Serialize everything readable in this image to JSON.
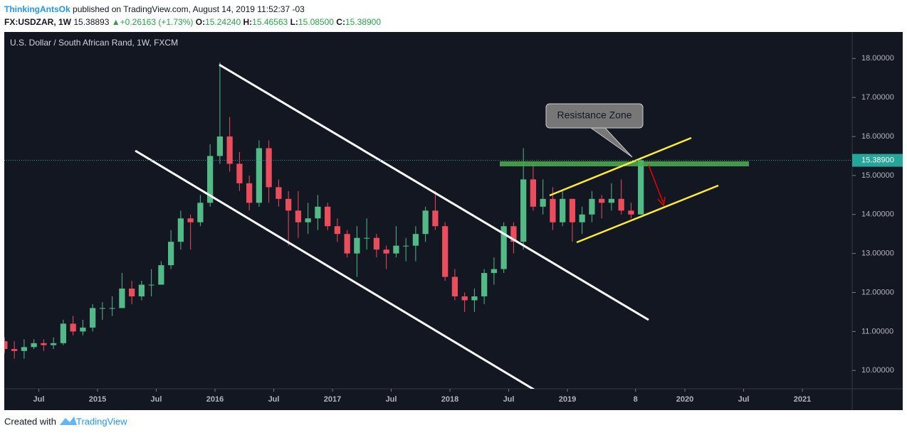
{
  "header": {
    "author": "ThinkingAntsOk",
    "published": "published on TradingView.com, August 14, 2019 11:52:37 -03",
    "symbol": "FX:USDZAR, 1W",
    "price": "15.38893",
    "change": "+0.26163 (+1.73%)",
    "o_label": "O:",
    "o": "15.24240",
    "h_label": "H:",
    "h": "15.46563",
    "l_label": "L:",
    "l": "15.08500",
    "c_label": "C:",
    "c": "15.38900"
  },
  "footer": {
    "created": "Created with",
    "brand": "TradingView"
  },
  "chart_data": {
    "type": "candlestick",
    "title": "U.S. Dollar / South African Rand, 1W, FXCM",
    "annotation": "Resistance Zone",
    "up_color": "#53b987",
    "down_color": "#eb4d5c",
    "x": [
      "2014-03",
      "2014-04",
      "2014-05",
      "2014-06",
      "2014-07",
      "2014-08",
      "2014-09",
      "2014-10",
      "2014-11",
      "2014-12",
      "2015-01",
      "2015-02",
      "2015-03",
      "2015-04",
      "2015-05",
      "2015-06",
      "2015-07",
      "2015-08",
      "2015-09",
      "2015-10",
      "2015-11",
      "2015-12",
      "2016-01",
      "2016-02",
      "2016-03",
      "2016-04",
      "2016-05",
      "2016-06",
      "2016-07",
      "2016-08",
      "2016-09",
      "2016-10",
      "2016-11",
      "2016-12",
      "2017-01",
      "2017-02",
      "2017-03",
      "2017-04",
      "2017-05",
      "2017-06",
      "2017-07",
      "2017-08",
      "2017-09",
      "2017-10",
      "2017-11",
      "2017-12",
      "2018-01",
      "2018-02",
      "2018-03",
      "2018-04",
      "2018-05",
      "2018-06",
      "2018-07",
      "2018-08",
      "2018-09",
      "2018-10",
      "2018-11",
      "2018-12",
      "2019-01",
      "2019-02",
      "2019-03",
      "2019-04",
      "2019-05",
      "2019-06",
      "2019-07",
      "2019-08"
    ],
    "open": [
      10.75,
      10.55,
      10.5,
      10.6,
      10.7,
      10.65,
      10.7,
      11.2,
      11.0,
      11.1,
      11.6,
      11.6,
      11.6,
      12.1,
      11.9,
      12.2,
      12.2,
      12.7,
      13.3,
      13.9,
      13.8,
      14.3,
      15.5,
      16.0,
      15.3,
      14.8,
      14.3,
      15.7,
      14.7,
      14.4,
      14.1,
      13.8,
      13.9,
      14.2,
      13.7,
      13.5,
      13.0,
      13.4,
      13.4,
      13.1,
      13.0,
      13.2,
      13.2,
      13.5,
      14.1,
      13.7,
      12.4,
      11.9,
      11.8,
      11.9,
      12.5,
      12.6,
      13.7,
      13.3,
      14.9,
      14.2,
      14.4,
      13.8,
      14.4,
      13.8,
      14.0,
      14.4,
      14.3,
      14.4,
      14.1,
      14.0
    ],
    "high": [
      10.85,
      10.75,
      10.8,
      10.8,
      10.8,
      10.85,
      11.3,
      11.4,
      11.3,
      11.7,
      11.75,
      11.9,
      12.5,
      12.3,
      12.3,
      12.6,
      12.8,
      13.6,
      14.1,
      14.0,
      14.5,
      15.8,
      17.9,
      16.5,
      15.6,
      15.0,
      15.9,
      15.9,
      14.9,
      14.6,
      14.6,
      14.3,
      14.5,
      14.3,
      13.9,
      13.6,
      13.7,
      13.9,
      13.5,
      13.2,
      13.7,
      13.4,
      13.7,
      14.2,
      14.6,
      13.8,
      12.6,
      12.0,
      12.1,
      12.6,
      12.9,
      13.8,
      13.8,
      15.7,
      15.3,
      14.9,
      14.7,
      14.6,
      14.4,
      14.2,
      14.6,
      14.5,
      14.8,
      14.9,
      14.3,
      15.47
    ],
    "low": [
      10.45,
      10.3,
      10.3,
      10.55,
      10.5,
      10.55,
      10.65,
      10.9,
      10.9,
      11.0,
      11.3,
      11.4,
      11.6,
      11.7,
      11.8,
      11.9,
      12.2,
      12.6,
      13.1,
      13.1,
      13.7,
      14.2,
      15.3,
      15.1,
      14.6,
      14.1,
      14.2,
      14.3,
      14.2,
      13.2,
      13.4,
      13.5,
      13.6,
      13.6,
      13.3,
      12.9,
      12.4,
      13.1,
      12.9,
      12.6,
      12.9,
      12.8,
      12.8,
      13.3,
      13.6,
      12.3,
      11.8,
      11.5,
      11.5,
      11.7,
      12.2,
      12.5,
      13.0,
      13.1,
      14.1,
      14.0,
      13.6,
      13.7,
      13.3,
      13.5,
      13.8,
      13.9,
      14.1,
      14.0,
      13.9,
      14.0
    ],
    "close": [
      10.55,
      10.5,
      10.6,
      10.7,
      10.65,
      10.7,
      11.2,
      11.0,
      11.1,
      11.6,
      11.6,
      11.6,
      12.1,
      11.9,
      12.2,
      12.2,
      12.7,
      13.3,
      13.9,
      13.8,
      14.3,
      15.5,
      16.0,
      15.3,
      14.8,
      14.3,
      15.7,
      14.7,
      14.4,
      14.1,
      13.8,
      13.9,
      14.2,
      13.7,
      13.5,
      13.0,
      13.4,
      13.4,
      13.1,
      13.0,
      13.2,
      13.2,
      13.5,
      14.1,
      13.7,
      12.4,
      11.9,
      11.8,
      11.9,
      12.5,
      12.6,
      13.7,
      13.3,
      14.9,
      14.2,
      14.4,
      13.8,
      14.4,
      13.8,
      14.0,
      14.4,
      14.3,
      14.4,
      14.1,
      14.0,
      15.39
    ],
    "xlim": [
      2014.206,
      2021.424
    ],
    "xticks": [
      {
        "value": 2014.5,
        "label": "Jul"
      },
      2015,
      {
        "value": 2015.5,
        "label": "Jul"
      },
      2016,
      {
        "value": 2016.5,
        "label": "Jul"
      },
      2017,
      {
        "value": 2017.5,
        "label": "Jul"
      },
      2018,
      {
        "value": 2018.5,
        "label": "Jul"
      },
      2019,
      {
        "value": 2019.58,
        "label": "8"
      },
      2020,
      {
        "value": 2020.5,
        "label": "Jul"
      },
      2021
    ],
    "ylim": [
      9.53,
      18.68
    ],
    "yticks": [
      {
        "value": 10,
        "label": "10.00000"
      },
      {
        "value": 11,
        "label": "11.00000"
      },
      {
        "value": 12,
        "label": "12.00000"
      },
      {
        "value": 13,
        "label": "13.00000"
      },
      {
        "value": 14,
        "label": "14.00000"
      },
      {
        "value": 15,
        "label": "15.00000"
      },
      {
        "value": 16,
        "label": "16.00000"
      },
      {
        "value": 17,
        "label": "17.00000"
      },
      {
        "value": 18,
        "label": "18.00000"
      }
    ],
    "last_price": {
      "value": 15.389,
      "label": "15.38900"
    }
  }
}
